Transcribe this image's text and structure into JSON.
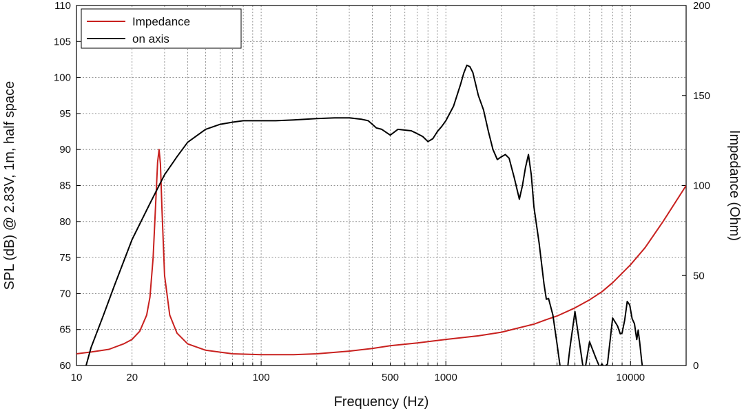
{
  "chart_data": {
    "type": "line",
    "xlabel": "Frequency (Hz)",
    "ylabel_left": "SPL (dB) @ 2.83V, 1m, half space",
    "ylabel_right": "Impedance (Ohm)",
    "x_scale": "log",
    "xlim": [
      10,
      20000
    ],
    "ylim_left": [
      60,
      110
    ],
    "ylim_right": [
      0,
      200
    ],
    "x_tick_labels": [
      "10",
      "20",
      "100",
      "500",
      "1000",
      "10000"
    ],
    "x_tick_values": [
      10,
      20,
      100,
      500,
      1000,
      10000
    ],
    "y_left_tick_values": [
      60,
      65,
      70,
      75,
      80,
      85,
      90,
      95,
      100,
      105,
      110
    ],
    "y_right_tick_values": [
      0,
      50,
      100,
      150,
      200
    ],
    "grid": true,
    "legend_position": "top-left",
    "colors": {
      "impedance": "#c8201e",
      "on_axis": "#000000"
    },
    "series": [
      {
        "name": "Impedance",
        "axis": "right",
        "x": [
          10,
          12,
          15,
          18,
          20,
          22,
          24,
          25,
          26,
          27,
          27.5,
          28,
          28.5,
          29,
          30,
          32,
          35,
          40,
          50,
          70,
          100,
          150,
          200,
          300,
          400,
          500,
          700,
          1000,
          1500,
          2000,
          2500,
          3000,
          3500,
          4000,
          5000,
          6000,
          7000,
          8000,
          10000,
          12000,
          15000,
          20000
        ],
        "y": [
          6.5,
          7.5,
          9,
          12,
          14.5,
          19,
          28,
          38,
          60,
          95,
          113,
          120,
          112,
          88,
          50,
          28,
          18,
          12,
          8.5,
          6.5,
          6,
          6,
          6.5,
          8,
          9.5,
          11,
          12.5,
          14.5,
          16.5,
          18.5,
          21,
          23,
          25.5,
          27.5,
          32,
          36.5,
          41,
          46,
          56,
          65.5,
          80,
          100
        ]
      },
      {
        "name": "on axis",
        "axis": "left",
        "x": [
          10,
          11,
          12,
          14,
          16,
          20,
          25,
          30,
          35,
          40,
          50,
          60,
          70,
          80,
          90,
          100,
          120,
          150,
          200,
          250,
          300,
          350,
          380,
          400,
          420,
          450,
          500,
          550,
          600,
          650,
          700,
          750,
          800,
          850,
          900,
          950,
          1000,
          1100,
          1200,
          1250,
          1300,
          1350,
          1400,
          1500,
          1600,
          1700,
          1800,
          1900,
          2000,
          2100,
          2200,
          2350,
          2500,
          2600,
          2700,
          2800,
          2900,
          3000,
          3200,
          3400,
          3500,
          3600,
          3800,
          4000,
          4200,
          4400,
          4500,
          4600,
          4700,
          5000,
          5500,
          5600,
          5700,
          6000,
          6500,
          6800,
          7000,
          7200,
          7500,
          8000,
          8500,
          8800,
          9000,
          9300,
          9600,
          9900,
          10200,
          10500,
          10800,
          11000,
          11200,
          11500,
          11800
        ],
        "y": [
          56,
          59,
          62.5,
          67,
          71,
          77.5,
          82.5,
          86.5,
          89,
          91,
          92.8,
          93.5,
          93.8,
          94,
          94,
          94,
          94,
          94.1,
          94.3,
          94.4,
          94.4,
          94.2,
          94,
          93.5,
          93,
          92.8,
          92,
          92.8,
          92.7,
          92.6,
          92.2,
          91.8,
          91.1,
          91.5,
          92.5,
          93.2,
          94,
          96,
          99,
          100.6,
          101.7,
          101.5,
          100.7,
          97.5,
          95.5,
          92.5,
          90,
          88.6,
          89,
          89.3,
          88.8,
          86,
          83.1,
          85,
          87.5,
          89.3,
          86.5,
          82,
          77,
          71.3,
          69.2,
          69.3,
          67,
          63,
          59,
          56,
          58,
          60.5,
          62.5,
          67.5,
          60.2,
          59.4,
          59.8,
          63.3,
          61,
          59.8,
          60.2,
          59.8,
          60.2,
          66.6,
          65.5,
          64.4,
          64.5,
          66.3,
          68.9,
          68.4,
          66.5,
          65.8,
          63.6,
          64.9,
          63.3,
          60.5,
          58.5
        ]
      }
    ]
  }
}
